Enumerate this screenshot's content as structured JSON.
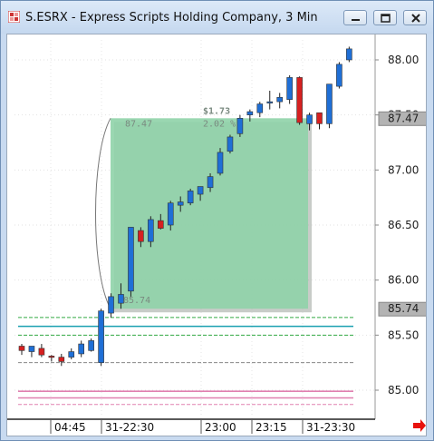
{
  "window": {
    "title": "S.ESRX - Express Scripts Holding Company, 3 Min",
    "icon": "chart-app-icon",
    "buttons": [
      "minimize",
      "restore",
      "close"
    ]
  },
  "chart_data": {
    "type": "candlestick",
    "symbol": "S.ESRX",
    "interval": "3 Min",
    "ylim": [
      84.8,
      88.25
    ],
    "y_ticks": [
      "88.00",
      "87.50",
      "87.00",
      "86.50",
      "86.00",
      "85.50",
      "85.00"
    ],
    "y_tick_values": [
      88.0,
      87.5,
      87.0,
      86.5,
      86.0,
      85.5,
      85.0
    ],
    "x_ticks": [
      "04:45",
      "31-22:30",
      "23:00",
      "23:15",
      "31-23:30"
    ],
    "price_markers": [
      {
        "label": "87.47",
        "value": 87.47
      },
      {
        "label": "85.74",
        "value": 85.74
      }
    ],
    "measure_box": {
      "high_label": "87.47",
      "low_label": "85.74",
      "change_label": "$1.73",
      "percent_label": "2.02 %",
      "high": 87.47,
      "low": 85.74
    },
    "colors": {
      "up": "#1f6fd6",
      "down": "#d62020",
      "measure_fill": "#8fd3a8",
      "reference_teal": "#1aa0b0",
      "green_dashed": "#33aa44",
      "pink": "#e080b0"
    },
    "reference_lines": [
      {
        "value": 85.58,
        "style": "solid",
        "color": "#1aa0b0"
      },
      {
        "value": 85.66,
        "style": "dashed",
        "color": "#33aa44"
      },
      {
        "value": 85.5,
        "style": "dashed",
        "color": "#33aa44"
      },
      {
        "value": 85.25,
        "style": "dashed",
        "color": "#888888"
      },
      {
        "value": 84.99,
        "style": "solid",
        "color": "#e080b0"
      },
      {
        "value": 84.93,
        "style": "solid",
        "color": "#e080b0"
      },
      {
        "value": 84.87,
        "style": "dashed",
        "color": "#e080b0"
      }
    ],
    "candles": [
      {
        "o": 85.4,
        "h": 85.42,
        "l": 85.32,
        "c": 85.36
      },
      {
        "o": 85.35,
        "h": 85.4,
        "l": 85.3,
        "c": 85.4
      },
      {
        "o": 85.38,
        "h": 85.42,
        "l": 85.3,
        "c": 85.32
      },
      {
        "o": 85.31,
        "h": 85.32,
        "l": 85.26,
        "c": 85.3
      },
      {
        "o": 85.3,
        "h": 85.33,
        "l": 85.22,
        "c": 85.26
      },
      {
        "o": 85.3,
        "h": 85.38,
        "l": 85.28,
        "c": 85.35
      },
      {
        "o": 85.33,
        "h": 85.45,
        "l": 85.3,
        "c": 85.42
      },
      {
        "o": 85.36,
        "h": 85.47,
        "l": 85.35,
        "c": 85.45
      },
      {
        "o": 85.25,
        "h": 85.74,
        "l": 85.22,
        "c": 85.72
      },
      {
        "o": 85.7,
        "h": 85.88,
        "l": 85.66,
        "c": 85.85
      },
      {
        "o": 85.79,
        "h": 85.97,
        "l": 85.74,
        "c": 85.87
      },
      {
        "o": 85.9,
        "h": 86.48,
        "l": 85.85,
        "c": 86.48
      },
      {
        "o": 86.45,
        "h": 86.48,
        "l": 86.3,
        "c": 86.35
      },
      {
        "o": 86.35,
        "h": 86.58,
        "l": 86.3,
        "c": 86.55
      },
      {
        "o": 86.54,
        "h": 86.6,
        "l": 86.46,
        "c": 86.47
      },
      {
        "o": 86.5,
        "h": 86.72,
        "l": 86.45,
        "c": 86.7
      },
      {
        "o": 86.68,
        "h": 86.76,
        "l": 86.62,
        "c": 86.71
      },
      {
        "o": 86.7,
        "h": 86.83,
        "l": 86.68,
        "c": 86.81
      },
      {
        "o": 86.78,
        "h": 86.85,
        "l": 86.72,
        "c": 86.85
      },
      {
        "o": 86.84,
        "h": 86.97,
        "l": 86.8,
        "c": 86.94
      },
      {
        "o": 86.97,
        "h": 87.2,
        "l": 86.95,
        "c": 87.16
      },
      {
        "o": 87.17,
        "h": 87.32,
        "l": 87.15,
        "c": 87.3
      },
      {
        "o": 87.33,
        "h": 87.5,
        "l": 87.3,
        "c": 87.47
      },
      {
        "o": 87.5,
        "h": 87.55,
        "l": 87.44,
        "c": 87.53
      },
      {
        "o": 87.52,
        "h": 87.62,
        "l": 87.48,
        "c": 87.6
      },
      {
        "o": 87.62,
        "h": 87.72,
        "l": 87.55,
        "c": 87.62
      },
      {
        "o": 87.62,
        "h": 87.7,
        "l": 87.56,
        "c": 87.66
      },
      {
        "o": 87.64,
        "h": 87.86,
        "l": 87.6,
        "c": 87.84
      },
      {
        "o": 87.84,
        "h": 87.85,
        "l": 87.41,
        "c": 87.43
      },
      {
        "o": 87.42,
        "h": 87.52,
        "l": 87.36,
        "c": 87.5
      },
      {
        "o": 87.52,
        "h": 87.52,
        "l": 87.37,
        "c": 87.42
      },
      {
        "o": 87.42,
        "h": 87.78,
        "l": 87.38,
        "c": 87.78
      },
      {
        "o": 87.76,
        "h": 87.98,
        "l": 87.74,
        "c": 87.96
      },
      {
        "o": 88.0,
        "h": 88.12,
        "l": 87.98,
        "c": 88.1
      }
    ]
  }
}
